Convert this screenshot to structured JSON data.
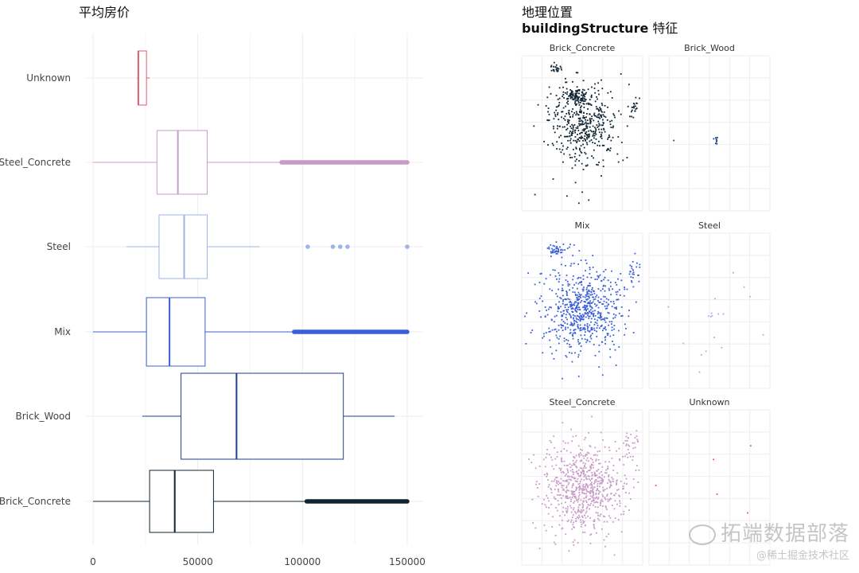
{
  "titles": {
    "left": "平均房价",
    "right_line1": "地理位置",
    "right_line2_bold": "buildingStructure",
    "right_line2_rest": " 特征"
  },
  "colors": {
    "Unknown": "#e05a6e",
    "Steel_Concrete": "#c89ac8",
    "Steel": "#9fb3e8",
    "Mix": "#3b5fd9",
    "Brick_Wood": "#1f3f8a",
    "Brick_Concrete": "#0f2433",
    "grid": "#ececec"
  },
  "chart_data": [
    {
      "type": "boxplot",
      "title": "平均房价",
      "orientation": "horizontal",
      "xlim": [
        0,
        150000
      ],
      "x_ticks": [
        "0",
        "50000",
        "100000",
        "150000"
      ],
      "x_tick_values": [
        0,
        50000,
        100000,
        150000
      ],
      "categories": [
        "Unknown",
        "Steel_Concrete",
        "Steel",
        "Mix",
        "Brick_Wood",
        "Brick_Concrete"
      ],
      "series": [
        {
          "name": "Unknown",
          "min": 21000,
          "q1": 21500,
          "median": 21600,
          "q3": 25500,
          "max": 27000,
          "outliers": [],
          "outlier_range": null
        },
        {
          "name": "Steel_Concrete",
          "min": 0,
          "q1": 30500,
          "median": 40500,
          "q3": 54500,
          "max": 90000,
          "outliers": [],
          "outlier_range": [
            90000,
            150000
          ]
        },
        {
          "name": "Steel",
          "min": 16000,
          "q1": 31500,
          "median": 43500,
          "q3": 54500,
          "max": 79500,
          "outliers": [
            102500,
            114500,
            118000,
            121500,
            150000
          ],
          "outlier_range": null
        },
        {
          "name": "Mix",
          "min": 0,
          "q1": 25500,
          "median": 36500,
          "q3": 53500,
          "max": 96000,
          "outliers": [],
          "outlier_range": [
            96000,
            150000
          ]
        },
        {
          "name": "Brick_Wood",
          "min": 23500,
          "q1": 42000,
          "median": 68500,
          "q3": 119500,
          "max": 144000,
          "outliers": [],
          "outlier_range": null
        },
        {
          "name": "Brick_Concrete",
          "min": 0,
          "q1": 27000,
          "median": 39000,
          "q3": 57500,
          "max": 102000,
          "outliers": [],
          "outlier_range": [
            102000,
            150000
          ]
        }
      ]
    },
    {
      "type": "scatter",
      "facet_title": "Brick_Concrete",
      "color_key": "Brick_Concrete",
      "clusters": [
        {
          "cx": 0.5,
          "cy": 0.42,
          "sx": 0.14,
          "sy": 0.12,
          "n": 420
        },
        {
          "cx": 0.45,
          "cy": 0.25,
          "sx": 0.05,
          "sy": 0.02,
          "n": 80
        },
        {
          "cx": 0.28,
          "cy": 0.08,
          "sx": 0.03,
          "sy": 0.01,
          "n": 25
        },
        {
          "cx": 0.92,
          "cy": 0.32,
          "sx": 0.02,
          "sy": 0.03,
          "n": 20
        },
        {
          "cx": 0.5,
          "cy": 0.6,
          "sx": 0.25,
          "sy": 0.2,
          "n": 40
        }
      ]
    },
    {
      "type": "scatter",
      "facet_title": "Brick_Wood",
      "color_key": "Brick_Wood",
      "clusters": [
        {
          "cx": 0.55,
          "cy": 0.53,
          "sx": 0.01,
          "sy": 0.02,
          "n": 8
        },
        {
          "cx": 0.2,
          "cy": 0.54,
          "sx": 0.002,
          "sy": 0.002,
          "n": 1
        }
      ]
    },
    {
      "type": "scatter",
      "facet_title": "Mix",
      "color_key": "Mix",
      "clusters": [
        {
          "cx": 0.5,
          "cy": 0.48,
          "sx": 0.16,
          "sy": 0.13,
          "n": 600
        },
        {
          "cx": 0.28,
          "cy": 0.1,
          "sx": 0.04,
          "sy": 0.02,
          "n": 40
        },
        {
          "cx": 0.92,
          "cy": 0.25,
          "sx": 0.03,
          "sy": 0.05,
          "n": 25
        },
        {
          "cx": 0.5,
          "cy": 0.6,
          "sx": 0.3,
          "sy": 0.25,
          "n": 60
        }
      ]
    },
    {
      "type": "scatter",
      "facet_title": "Steel",
      "color_key": "Steel",
      "clusters": [
        {
          "cx": 0.52,
          "cy": 0.52,
          "sx": 0.03,
          "sy": 0.01,
          "n": 6
        },
        {
          "cx": 0.5,
          "cy": 0.5,
          "sx": 0.3,
          "sy": 0.3,
          "n": 14
        }
      ]
    },
    {
      "type": "scatter",
      "facet_title": "Steel_Concrete",
      "color_key": "Steel_Concrete",
      "clusters": [
        {
          "cx": 0.5,
          "cy": 0.5,
          "sx": 0.16,
          "sy": 0.14,
          "n": 650
        },
        {
          "cx": 0.9,
          "cy": 0.22,
          "sx": 0.04,
          "sy": 0.06,
          "n": 30
        },
        {
          "cx": 0.5,
          "cy": 0.6,
          "sx": 0.3,
          "sy": 0.25,
          "n": 80
        }
      ]
    },
    {
      "type": "scatter",
      "facet_title": "Unknown",
      "color_key": "Unknown",
      "clusters": [
        {
          "cx": 0.5,
          "cy": 0.4,
          "sx": 0.3,
          "sy": 0.25,
          "n": 6
        }
      ]
    }
  ],
  "watermark": {
    "main": "拓端数据部落",
    "sub": "@稀土掘金技术社区"
  }
}
